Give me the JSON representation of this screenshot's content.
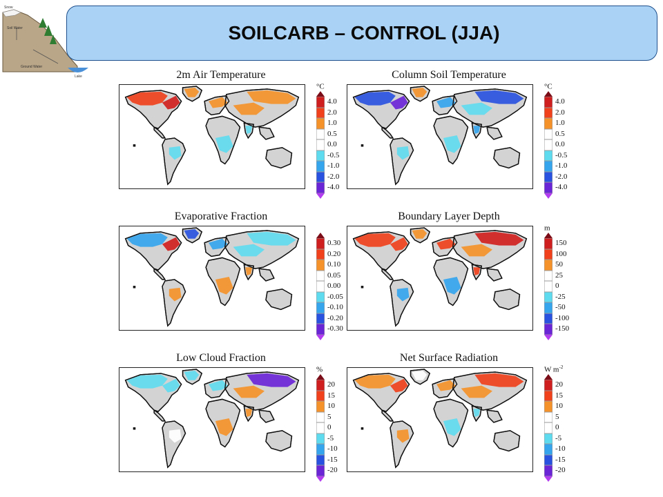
{
  "header": {
    "title": "SOILCARB – CONTROL (JJA)"
  },
  "logo": {
    "labels": [
      "Snow",
      "Soil Water",
      "Ground Water",
      "Lake"
    ]
  },
  "colors": {
    "scale": [
      "#7a0d17",
      "#d01f1f",
      "#f0411c",
      "#f5922a",
      "#ffffff",
      "#ffffff",
      "#5fdbef",
      "#35a6ee",
      "#2a52e0",
      "#6a25d6",
      "#b33cf0"
    ],
    "land": "#d3d3d3",
    "ocean": "#ffffff",
    "coast": "#111111"
  },
  "panels": [
    {
      "title": "2m Air Temperature",
      "unit": "°C",
      "unit_sup": "",
      "ticks": [
        "4.0",
        "2.0",
        "1.0",
        "0.5",
        "0.0",
        "-0.5",
        "-1.0",
        "-2.0",
        "-4.0"
      ],
      "anomalies": [
        {
          "region": "north-america-north",
          "level": 2
        },
        {
          "region": "greenland",
          "level": 3
        },
        {
          "region": "canada-east",
          "level": 1
        },
        {
          "region": "siberia",
          "level": 3
        },
        {
          "region": "europe-north",
          "level": 3
        },
        {
          "region": "central-asia",
          "level": 3
        },
        {
          "region": "africa-central",
          "level": 6
        },
        {
          "region": "south-america-central",
          "level": 6
        },
        {
          "region": "india",
          "level": 6
        }
      ]
    },
    {
      "title": "Column Soil Temperature",
      "unit": "°C",
      "unit_sup": "",
      "ticks": [
        "4.0",
        "2.0",
        "1.0",
        "0.5",
        "0.0",
        "-0.5",
        "-1.0",
        "-2.0",
        "-4.0"
      ],
      "anomalies": [
        {
          "region": "north-america-north",
          "level": 8
        },
        {
          "region": "greenland",
          "level": 3
        },
        {
          "region": "canada-east",
          "level": 9
        },
        {
          "region": "siberia",
          "level": 8
        },
        {
          "region": "europe-north",
          "level": 7
        },
        {
          "region": "central-asia",
          "level": 6
        },
        {
          "region": "africa-central",
          "level": 6
        },
        {
          "region": "south-america-central",
          "level": 6
        },
        {
          "region": "india",
          "level": 7
        }
      ]
    },
    {
      "title": "Evaporative Fraction",
      "unit": "",
      "unit_sup": "",
      "ticks": [
        "0.30",
        "0.20",
        "0.10",
        "0.05",
        "0.00",
        "-0.05",
        "-0.10",
        "-0.20",
        "-0.30"
      ],
      "anomalies": [
        {
          "region": "north-america-north",
          "level": 7
        },
        {
          "region": "greenland",
          "level": 8
        },
        {
          "region": "canada-east",
          "level": 1
        },
        {
          "region": "siberia",
          "level": 6
        },
        {
          "region": "europe-north",
          "level": 7
        },
        {
          "region": "central-asia",
          "level": 6
        },
        {
          "region": "africa-central",
          "level": 3
        },
        {
          "region": "south-america-central",
          "level": 3
        },
        {
          "region": "india",
          "level": 3
        }
      ]
    },
    {
      "title": "Boundary Layer Depth",
      "unit": "m",
      "unit_sup": "",
      "ticks": [
        "150",
        "100",
        "50",
        "25",
        "0",
        "-25",
        "-50",
        "-100",
        "-150"
      ],
      "anomalies": [
        {
          "region": "north-america-north",
          "level": 2
        },
        {
          "region": "greenland",
          "level": 3
        },
        {
          "region": "canada-east",
          "level": 2
        },
        {
          "region": "siberia",
          "level": 1
        },
        {
          "region": "europe-north",
          "level": 2
        },
        {
          "region": "central-asia",
          "level": 3
        },
        {
          "region": "africa-central",
          "level": 7
        },
        {
          "region": "south-america-central",
          "level": 7
        },
        {
          "region": "india",
          "level": 2
        }
      ]
    },
    {
      "title": "Low Cloud Fraction",
      "unit": "%",
      "unit_sup": "",
      "ticks": [
        "20",
        "15",
        "10",
        "5",
        "0",
        "-5",
        "-10",
        "-15",
        "-20"
      ],
      "anomalies": [
        {
          "region": "north-america-north",
          "level": 6
        },
        {
          "region": "greenland",
          "level": 6
        },
        {
          "region": "canada-east",
          "level": 6
        },
        {
          "region": "siberia",
          "level": 9
        },
        {
          "region": "europe-north",
          "level": 6
        },
        {
          "region": "central-asia",
          "level": 3
        },
        {
          "region": "africa-central",
          "level": 3
        },
        {
          "region": "south-america-central",
          "level": 4
        },
        {
          "region": "india",
          "level": 3
        }
      ]
    },
    {
      "title": "Net Surface Radiation",
      "unit": "W m",
      "unit_sup": "-2",
      "ticks": [
        "20",
        "15",
        "10",
        "5",
        "0",
        "-5",
        "-10",
        "-15",
        "-20"
      ],
      "anomalies": [
        {
          "region": "north-america-north",
          "level": 3
        },
        {
          "region": "greenland",
          "level": 4
        },
        {
          "region": "canada-east",
          "level": 2
        },
        {
          "region": "siberia",
          "level": 2
        },
        {
          "region": "europe-north",
          "level": 3
        },
        {
          "region": "central-asia",
          "level": 3
        },
        {
          "region": "africa-central",
          "level": 6
        },
        {
          "region": "south-america-central",
          "level": 3
        },
        {
          "region": "india",
          "level": 6
        }
      ]
    }
  ]
}
